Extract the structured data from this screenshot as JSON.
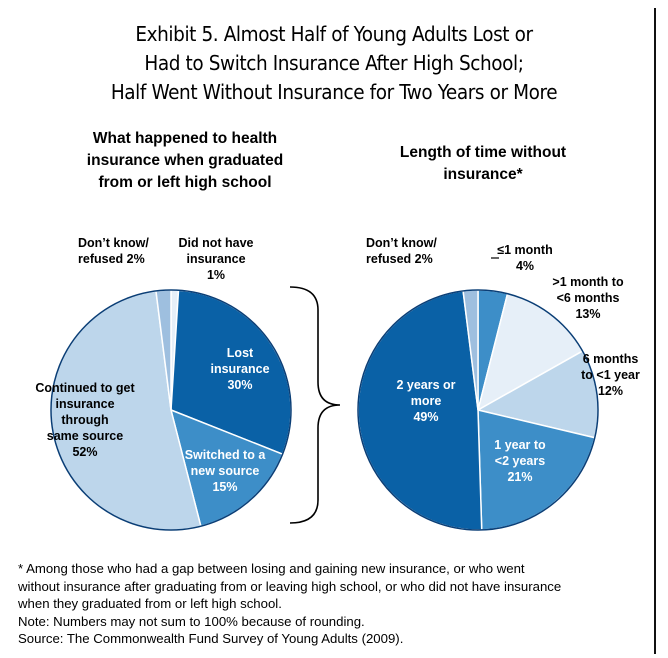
{
  "title": {
    "lines": [
      "Exhibit 5. Almost Half of Young Adults Lost or",
      "Had to Switch Insurance After High School;",
      "Half Went Without Insurance for Two Years or More"
    ]
  },
  "colors": {
    "dark_blue": "#0a61a6",
    "mid_blue": "#3d8ec8",
    "light_blue": "#bdd6eb",
    "pale_blue": "#e6eff8",
    "small_blue": "#9ebfdf",
    "edge": "#ffffff",
    "outline": "#0a3e76"
  },
  "chart_data": [
    {
      "type": "pie",
      "title": "What happened to health insurance when graduated from or left high school",
      "title_lines": [
        "What happened to health",
        "insurance when graduated",
        "from or left high school"
      ],
      "slices": [
        {
          "label": "Lost insurance",
          "value": 30,
          "color": "#0a61a6",
          "label_lines": [
            "Lost",
            "insurance",
            "30%"
          ]
        },
        {
          "label": "Switched to a new source",
          "value": 15,
          "color": "#3d8ec8",
          "label_lines": [
            "Switched to a",
            "new source",
            "15%"
          ]
        },
        {
          "label": "Continued to get insurance through same source",
          "value": 52,
          "color": "#bdd6eb",
          "label_lines": [
            "Continued to get",
            "insurance",
            "through",
            "same source",
            "52%"
          ]
        },
        {
          "label": "Don't know/refused",
          "value": 2,
          "color": "#9ebfdf",
          "label_lines": [
            "Don’t know/",
            "refused 2%"
          ]
        },
        {
          "label": "Did not have insurance",
          "value": 1,
          "color": "#e6eff8",
          "label_lines": [
            "Did not have",
            "insurance",
            "1%"
          ]
        }
      ]
    },
    {
      "type": "pie",
      "title": "Length of time without insurance*",
      "title_lines": [
        "Length of time without",
        "insurance*"
      ],
      "slices": [
        {
          "label": "≤1 month",
          "value": 4,
          "color": "#3d8ec8",
          "label_lines": [
            "≤1 month",
            "4%"
          ]
        },
        {
          "label": ">1 month to <6 months",
          "value": 13,
          "color": "#e6eff8",
          "label_lines": [
            ">1 month to",
            "<6 months",
            "13%"
          ]
        },
        {
          "label": "6 months to <1 year",
          "value": 12,
          "color": "#bdd6eb",
          "label_lines": [
            "6 months",
            "to <1 year",
            "12%"
          ]
        },
        {
          "label": "1 year to <2 years",
          "value": 21,
          "color": "#3d8ec8",
          "label_lines": [
            "1 year to",
            "<2 years",
            "21%"
          ]
        },
        {
          "label": "2 years or more",
          "value": 49,
          "color": "#0a61a6",
          "label_lines": [
            "2 years or",
            "more",
            "49%"
          ]
        },
        {
          "label": "Don't know/refused",
          "value": 2,
          "color": "#9ebfdf",
          "label_lines": [
            "Don’t know/",
            "refused 2%"
          ]
        }
      ]
    }
  ],
  "notes": [
    "* Among those who had a gap between losing and gaining new insurance, or who went",
    "without insurance after graduating from or leaving high school, or who did not have insurance",
    "when they graduated from or left high school.",
    "Note: Numbers may not sum to 100% because of rounding.",
    "Source: The Commonwealth Fund Survey of Young Adults (2009)."
  ]
}
